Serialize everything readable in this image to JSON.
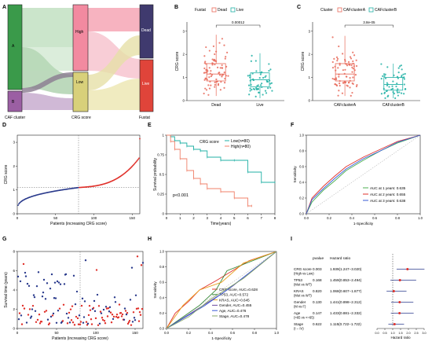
{
  "panel_letters": [
    "A",
    "B",
    "C",
    "D",
    "E",
    "F",
    "G",
    "H",
    "I"
  ],
  "sankey": {
    "left_nodes": [
      {
        "label": "A",
        "color": "#3a9a4a"
      },
      {
        "label": "B",
        "color": "#9b5fa3"
      }
    ],
    "mid_nodes": [
      {
        "label": "High",
        "color": "#f28aa0"
      },
      {
        "label": "Low",
        "color": "#d8d07a"
      }
    ],
    "right_nodes": [
      {
        "label": "Dead",
        "color": "#3f3a6e"
      },
      {
        "label": "Live",
        "color": "#e0443a"
      }
    ],
    "axis_labels": [
      "CAF cluster",
      "CRG score",
      "Fustat"
    ]
  },
  "chart_data": [
    {
      "panel": "B",
      "type": "box",
      "legend_title": "Fustat",
      "legend_items": [
        "Dead",
        "Live"
      ],
      "colors": [
        "#e86a5a",
        "#20b0a5"
      ],
      "categories": [
        "Dead",
        "Live"
      ],
      "ylabel": "CRG score",
      "ylim": [
        0,
        3.4
      ],
      "yticks": [
        0,
        1,
        2,
        3
      ],
      "boxes": [
        {
          "min": 0.2,
          "q1": 0.85,
          "median": 1.15,
          "q3": 1.6,
          "max": 2.85
        },
        {
          "min": 0.1,
          "q1": 0.6,
          "median": 0.9,
          "q3": 1.2,
          "max": 2.05
        }
      ],
      "pvalue": "0.00012"
    },
    {
      "panel": "C",
      "type": "box",
      "legend_title": "Cluster",
      "legend_items": [
        "CAFclusterA",
        "CAFclusterB"
      ],
      "colors": [
        "#e86a5a",
        "#20b0a5"
      ],
      "categories": [
        "CAFclusterA",
        "CAFclusterB"
      ],
      "ylabel": "CRG score",
      "ylim": [
        0,
        3.4
      ],
      "yticks": [
        0,
        1,
        2,
        3
      ],
      "boxes": [
        {
          "min": 0.2,
          "q1": 0.85,
          "median": 1.15,
          "q3": 1.6,
          "max": 2.8
        },
        {
          "min": 0.1,
          "q1": 0.45,
          "median": 0.7,
          "q3": 1.0,
          "max": 1.6
        }
      ],
      "pvalue": "3.8e-05"
    },
    {
      "panel": "D",
      "type": "scatter",
      "xlabel": "Patients (increasing CRG score)",
      "ylabel": "CRG score",
      "xlim": [
        0,
        160
      ],
      "ylim": [
        0,
        3.3
      ],
      "xticks": [
        0,
        50,
        100,
        150
      ],
      "yticks": [
        0,
        1,
        2,
        3
      ],
      "cutoff_x": 80,
      "cutoff_y": 1.1,
      "low_color": "#2a3a8c",
      "high_color": "#e0302a"
    },
    {
      "panel": "E",
      "type": "line",
      "legend_title": "CRG score",
      "legend_items": [
        "Low(n=80)",
        "High(n=80)"
      ],
      "colors": [
        "#20b0a5",
        "#f0806a"
      ],
      "xlabel": "Time(years)",
      "ylabel": "Survival probability",
      "xlim": [
        0,
        8
      ],
      "ylim": [
        0,
        1
      ],
      "xticks": [
        0,
        1,
        2,
        3,
        4,
        5,
        6,
        7,
        8
      ],
      "yticks": [
        0,
        0.25,
        0.5,
        0.75,
        1
      ],
      "pvalue": "p<0.001",
      "series": [
        {
          "name": "Low(n=80)",
          "points": [
            [
              0,
              1
            ],
            [
              0.3,
              0.98
            ],
            [
              0.6,
              0.93
            ],
            [
              1,
              0.9
            ],
            [
              1.5,
              0.86
            ],
            [
              2,
              0.82
            ],
            [
              2.5,
              0.8
            ],
            [
              3,
              0.72
            ],
            [
              4,
              0.68
            ],
            [
              5,
              0.68
            ],
            [
              6,
              0.53
            ],
            [
              7,
              0.4
            ],
            [
              8,
              0.4
            ]
          ]
        },
        {
          "name": "High(n=80)",
          "points": [
            [
              0,
              1
            ],
            [
              0.3,
              0.92
            ],
            [
              0.6,
              0.82
            ],
            [
              1,
              0.7
            ],
            [
              1.5,
              0.55
            ],
            [
              2,
              0.45
            ],
            [
              2.5,
              0.38
            ],
            [
              3,
              0.32
            ],
            [
              4,
              0.28
            ],
            [
              5,
              0.2
            ],
            [
              6,
              0.1
            ],
            [
              6.3,
              0.1
            ]
          ]
        }
      ]
    },
    {
      "panel": "F",
      "type": "line",
      "xlabel": "1-Specificity",
      "ylabel": "Sensitivity",
      "xlim": [
        0,
        1
      ],
      "ylim": [
        0,
        1
      ],
      "xticks": [
        0,
        0.2,
        0.4,
        0.6,
        0.8,
        1.0
      ],
      "yticks": [
        0,
        0.2,
        0.4,
        0.6,
        0.8,
        1.0
      ],
      "series": [
        {
          "name": "AUC at 1 years: 0.635",
          "color": "#4caf50",
          "points": [
            [
              0,
              0
            ],
            [
              0.05,
              0.15
            ],
            [
              0.15,
              0.3
            ],
            [
              0.25,
              0.42
            ],
            [
              0.35,
              0.55
            ],
            [
              0.5,
              0.68
            ],
            [
              0.65,
              0.8
            ],
            [
              0.8,
              0.9
            ],
            [
              1,
              1
            ]
          ]
        },
        {
          "name": "AUC at 2 years: 0.655",
          "color": "#e0302a",
          "points": [
            [
              0,
              0
            ],
            [
              0.05,
              0.2
            ],
            [
              0.15,
              0.35
            ],
            [
              0.25,
              0.48
            ],
            [
              0.35,
              0.6
            ],
            [
              0.5,
              0.72
            ],
            [
              0.65,
              0.82
            ],
            [
              0.8,
              0.92
            ],
            [
              1,
              1
            ]
          ]
        },
        {
          "name": "AUC at 3 years: 0.638",
          "color": "#3a5bd6",
          "points": [
            [
              0,
              0
            ],
            [
              0.05,
              0.18
            ],
            [
              0.15,
              0.32
            ],
            [
              0.25,
              0.45
            ],
            [
              0.35,
              0.57
            ],
            [
              0.5,
              0.7
            ],
            [
              0.65,
              0.8
            ],
            [
              0.8,
              0.91
            ],
            [
              1,
              1
            ]
          ]
        }
      ]
    },
    {
      "panel": "G",
      "type": "scatter",
      "xlabel": "Patients (increasing CRG score)",
      "ylabel": "Survival time (years)",
      "xlim": [
        0,
        160
      ],
      "ylim": [
        0,
        8
      ],
      "xticks": [
        0,
        50,
        100,
        150
      ],
      "yticks": [
        0,
        2,
        4,
        6,
        8
      ],
      "cutoff_x": 80,
      "dead_color": "#e0302a",
      "alive_color": "#2a3a8c"
    },
    {
      "panel": "H",
      "type": "line",
      "xlabel": "1-Specificity",
      "ylabel": "Sensitivity",
      "xlim": [
        0,
        1
      ],
      "ylim": [
        0,
        1
      ],
      "xticks": [
        0,
        0.2,
        0.4,
        0.6,
        0.8,
        1.0
      ],
      "yticks": [
        0,
        0.2,
        0.4,
        0.6,
        0.8,
        1.0
      ],
      "series": [
        {
          "name": "CRG score, AUC=0.628",
          "color": "#e0302a",
          "points": [
            [
              0,
              0
            ],
            [
              0.08,
              0.2
            ],
            [
              0.2,
              0.35
            ],
            [
              0.3,
              0.5
            ],
            [
              0.45,
              0.62
            ],
            [
              0.6,
              0.75
            ],
            [
              0.75,
              0.88
            ],
            [
              1,
              1
            ]
          ]
        },
        {
          "name": "TP53, AUC=0.572",
          "color": "#3a8a3a",
          "points": [
            [
              0,
              0
            ],
            [
              0.3,
              0.3
            ],
            [
              0.45,
              0.5
            ],
            [
              0.55,
              0.75
            ],
            [
              1,
              1
            ]
          ]
        },
        {
          "name": "KRAS, AUC=0.645",
          "color": "#e8a020",
          "points": [
            [
              0,
              0
            ],
            [
              0.15,
              0.3
            ],
            [
              0.3,
              0.5
            ],
            [
              0.5,
              0.6
            ],
            [
              0.7,
              0.85
            ],
            [
              1,
              1
            ]
          ]
        },
        {
          "name": "Gender, AUC=0.455",
          "color": "#6a4aa0",
          "points": [
            [
              0,
              0
            ],
            [
              0.5,
              0.45
            ],
            [
              0.6,
              0.55
            ],
            [
              1,
              1
            ]
          ]
        },
        {
          "name": "Age, AUC=0.476",
          "color": "#3a5bd6",
          "points": [
            [
              0,
              0
            ],
            [
              0.35,
              0.3
            ],
            [
              0.55,
              0.5
            ],
            [
              0.75,
              0.72
            ],
            [
              1,
              1
            ]
          ]
        },
        {
          "name": "Stage, AUC=0.478",
          "color": "#8aa86a",
          "points": [
            [
              0,
              0
            ],
            [
              0.2,
              0.15
            ],
            [
              0.4,
              0.38
            ],
            [
              0.7,
              0.65
            ],
            [
              1,
              1
            ]
          ]
        }
      ]
    },
    {
      "panel": "I",
      "type": "forest",
      "headers": [
        "pvalue",
        "Hazard ratio"
      ],
      "xlabel": "Hazard ratio",
      "xlim": [
        0,
        3
      ],
      "xticks": [
        0,
        0.5,
        1.0,
        1.5,
        2.0,
        2.5,
        3.0
      ],
      "rows": [
        {
          "label": "CRG score",
          "sublabel": "(High vs Low)",
          "pvalue": "0.003",
          "hr_text": "1.939(1.247−3.020)",
          "hr": 1.939,
          "lo": 1.247,
          "hi": 3.02
        },
        {
          "label": "TP53",
          "sublabel": "(Mut vs WT)",
          "pvalue": "0.168",
          "hr_text": "1.459(0.853−2.494)",
          "hr": 1.459,
          "lo": 0.853,
          "hi": 2.494
        },
        {
          "label": "KRAS",
          "sublabel": "(Mut vs WT)",
          "pvalue": "0.820",
          "hr_text": "1.068(0.607−1.877)",
          "hr": 1.068,
          "lo": 0.607,
          "hi": 1.877
        },
        {
          "label": "Gender",
          "sublabel": "(M vs F)",
          "pvalue": "0.130",
          "hr_text": "1.441(0.898−2.312)",
          "hr": 1.441,
          "lo": 0.898,
          "hi": 2.312
        },
        {
          "label": "Age",
          "sublabel": "(>65 vs <=65)",
          "pvalue": "0.147",
          "hr_text": "1.433(0.881−2.332)",
          "hr": 1.433,
          "lo": 0.881,
          "hi": 2.332
        },
        {
          "label": "Stage",
          "sublabel": "(I − IV)",
          "pvalue": "0.622",
          "hr_text": "1.115(0.722−1.722)",
          "hr": 1.115,
          "lo": 0.722,
          "hi": 1.722
        }
      ]
    }
  ]
}
